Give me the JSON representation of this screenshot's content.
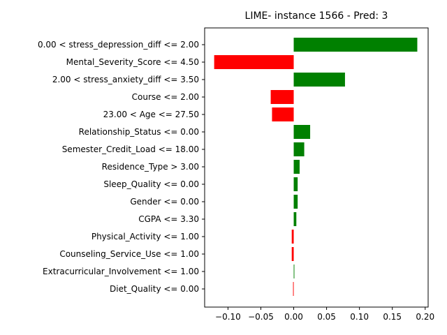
{
  "chart_data": {
    "type": "bar",
    "orientation": "horizontal",
    "title": "LIME- instance 1566 - Pred: 3",
    "xlabel": "",
    "ylabel": "",
    "xlim": [
      -0.1355,
      0.2045
    ],
    "xticks": [
      -0.1,
      -0.05,
      0.0,
      0.05,
      0.1,
      0.15,
      0.2
    ],
    "xtick_labels": [
      "−0.10",
      "−0.05",
      "0.00",
      "0.05",
      "0.10",
      "0.15",
      "0.20"
    ],
    "grid": false,
    "positive_color": "#008000",
    "negative_color": "#ff0000",
    "categories": [
      "0.00 < stress_depression_diff <= 2.00",
      "Mental_Severity_Score <= 4.50",
      "2.00 < stress_anxiety_diff <= 3.50",
      "Course <= 2.00",
      "23.00 < Age <= 27.50",
      "Relationship_Status <= 0.00",
      "Semester_Credit_Load <= 18.00",
      "Residence_Type > 3.00",
      "Sleep_Quality <= 0.00",
      "Gender <= 0.00",
      "CGPA <= 3.30",
      "Physical_Activity <= 1.00",
      "Counseling_Service_Use <= 1.00",
      "Extracurricular_Involvement <= 1.00",
      "Diet_Quality <= 0.00"
    ],
    "values": [
      0.188,
      -0.121,
      0.078,
      -0.035,
      -0.033,
      0.025,
      0.016,
      0.009,
      0.006,
      0.006,
      0.004,
      -0.003,
      -0.003,
      0.001,
      -0.001
    ]
  }
}
